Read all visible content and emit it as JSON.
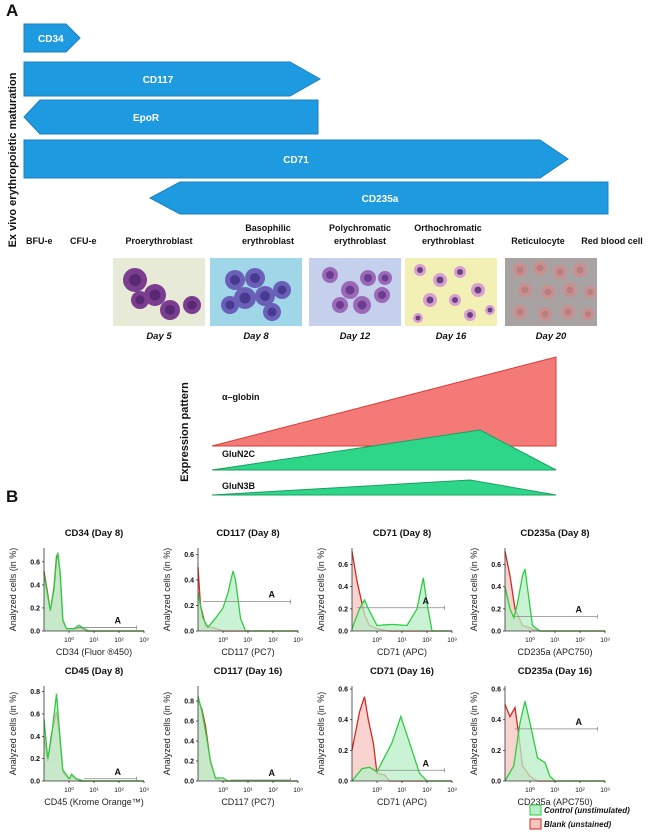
{
  "panel_a": {
    "letter": "A",
    "vertical_label": "Ex vivo erythropoietic maturation",
    "markers": [
      "CD34",
      "CD117",
      "EpoR",
      "CD71",
      "CD235a"
    ],
    "stages": {
      "bfu": "BFU-e",
      "cfu": "CFU-e",
      "pro": "Proerythroblast",
      "baso1": "Basophilic",
      "baso2": "erythroblast",
      "poly1": "Polychromatic",
      "poly2": "erythroblast",
      "ortho1": "Orthochromatic",
      "ortho2": "erythroblast",
      "retic": "Reticulocyte",
      "rbc": "Red blood cell"
    },
    "days": [
      "Day 5",
      "Day 8",
      "Day 12",
      "Day 16",
      "Day 20"
    ],
    "expression": {
      "label": "Expression pattern",
      "genes": [
        "α–globin",
        "GluN2C",
        "GluN3B"
      ]
    }
  },
  "panel_b": {
    "letter": "B",
    "legend": {
      "control": "Control (unstimulated)",
      "blank": "Blank (unstained)"
    }
  },
  "colors": {
    "arrow": "#1e9be0",
    "control": "#2ecc40",
    "control_fill": "#b8efc8",
    "blank": "#d42a20",
    "blank_fill": "#f6c4c0"
  },
  "chart_data": [
    {
      "type": "area",
      "title": "CD34 (Day 8)",
      "xlabel": "CD34 (Fluor ®450)",
      "ylabel": "Analyzed cells (in %)",
      "xlim_log10": [
        -1,
        3
      ],
      "xticks": [
        "10⁰",
        "10¹",
        "10²",
        "10³"
      ],
      "ylim": [
        0,
        0.72
      ],
      "yticks": [
        "0.0",
        "0.2",
        "0.4",
        "0.6"
      ],
      "gate": {
        "label": "A",
        "from_log10": 0.3,
        "to_log10": 2.7,
        "y": 0.03
      },
      "series": [
        {
          "name": "Control (unstimulated)",
          "points": [
            [
              -1,
              0.5
            ],
            [
              -0.85,
              0.3
            ],
            [
              -0.75,
              0.18
            ],
            [
              -0.6,
              0.36
            ],
            [
              -0.5,
              0.62
            ],
            [
              -0.45,
              0.68
            ],
            [
              -0.35,
              0.5
            ],
            [
              -0.25,
              0.1
            ],
            [
              -0.1,
              0.02
            ],
            [
              0.2,
              0.02
            ],
            [
              0.4,
              0.05
            ],
            [
              0.6,
              0.02
            ],
            [
              0.8,
              0
            ],
            [
              3,
              0
            ]
          ]
        },
        {
          "name": "Blank (unstained)",
          "points": [
            [
              -1,
              0.52
            ],
            [
              -0.85,
              0.32
            ],
            [
              -0.75,
              0.17
            ],
            [
              -0.6,
              0.38
            ],
            [
              -0.5,
              0.65
            ],
            [
              -0.45,
              0.66
            ],
            [
              -0.35,
              0.45
            ],
            [
              -0.25,
              0.08
            ],
            [
              -0.1,
              0.02
            ],
            [
              0.3,
              0.02
            ],
            [
              0.45,
              0.03
            ],
            [
              0.7,
              0
            ],
            [
              3,
              0
            ]
          ]
        }
      ]
    },
    {
      "type": "area",
      "title": "CD117 (Day 8)",
      "xlabel": "CD117 (PC7)",
      "ylabel": "Analyzed cells (in %)",
      "xlim_log10": [
        -1,
        3
      ],
      "xticks": [
        "10⁰",
        "10¹",
        "10²",
        "10³"
      ],
      "ylim": [
        0,
        0.65
      ],
      "yticks": [
        "0.0",
        "0.2",
        "0.4",
        "0.6"
      ],
      "gate": {
        "label": "A",
        "from_log10": -0.8,
        "to_log10": 2.7,
        "y": 0.23
      },
      "series": [
        {
          "name": "Control (unstimulated)",
          "points": [
            [
              -1,
              0.3
            ],
            [
              -0.8,
              0.1
            ],
            [
              -0.6,
              0.03
            ],
            [
              -0.3,
              0.1
            ],
            [
              0,
              0.18
            ],
            [
              0.2,
              0.3
            ],
            [
              0.4,
              0.47
            ],
            [
              0.5,
              0.4
            ],
            [
              0.7,
              0.1
            ],
            [
              0.9,
              0
            ],
            [
              3,
              0
            ]
          ]
        },
        {
          "name": "Blank (unstained)",
          "points": [
            [
              -1,
              0.5
            ],
            [
              -0.9,
              0.2
            ],
            [
              -0.7,
              0.04
            ],
            [
              -0.3,
              0.02
            ],
            [
              0,
              0
            ],
            [
              3,
              0
            ]
          ]
        }
      ]
    },
    {
      "type": "area",
      "title": "CD71 (Day 8)",
      "xlabel": "CD71 (APC)",
      "ylabel": "Analyzed cells (in %)",
      "xlim_log10": [
        -1,
        3
      ],
      "xticks": [
        "10⁰",
        "10¹",
        "10²",
        "10³"
      ],
      "ylim": [
        0,
        0.75
      ],
      "yticks": [
        "0.0",
        "0.2",
        "0.4",
        "0.6"
      ],
      "gate": {
        "label": "A",
        "from_log10": -0.8,
        "to_log10": 2.7,
        "y": 0.21
      },
      "series": [
        {
          "name": "Control (unstimulated)",
          "points": [
            [
              -1,
              0.02
            ],
            [
              -0.7,
              0.2
            ],
            [
              -0.5,
              0.28
            ],
            [
              -0.3,
              0.18
            ],
            [
              0,
              0.05
            ],
            [
              0.6,
              0.06
            ],
            [
              1.2,
              0.05
            ],
            [
              1.6,
              0.2
            ],
            [
              1.85,
              0.48
            ],
            [
              2,
              0.25
            ],
            [
              2.2,
              0
            ],
            [
              3,
              0
            ]
          ]
        },
        {
          "name": "Blank (unstained)",
          "points": [
            [
              -1,
              0.72
            ],
            [
              -0.8,
              0.45
            ],
            [
              -0.5,
              0.15
            ],
            [
              -0.3,
              0.05
            ],
            [
              0,
              0.02
            ],
            [
              0.5,
              0
            ],
            [
              3,
              0
            ]
          ]
        }
      ]
    },
    {
      "type": "area",
      "title": "CD235a (Day 8)",
      "xlabel": "CD235a (APC750)",
      "ylabel": "Analyzed cells (in %)",
      "xlim_log10": [
        -1,
        3
      ],
      "xticks": [
        "10⁰",
        "10¹",
        "10²",
        "10³"
      ],
      "ylim": [
        0,
        0.75
      ],
      "yticks": [
        "0.0",
        "0.2",
        "0.4",
        "0.6"
      ],
      "gate": {
        "label": "A",
        "from_log10": -0.6,
        "to_log10": 2.7,
        "y": 0.13
      },
      "series": [
        {
          "name": "Control (unstimulated)",
          "points": [
            [
              -1,
              0.4
            ],
            [
              -0.8,
              0.2
            ],
            [
              -0.65,
              0.12
            ],
            [
              -0.5,
              0.25
            ],
            [
              -0.3,
              0.5
            ],
            [
              -0.2,
              0.56
            ],
            [
              -0.05,
              0.3
            ],
            [
              0.1,
              0.05
            ],
            [
              0.4,
              0
            ],
            [
              3,
              0
            ]
          ]
        },
        {
          "name": "Blank (unstained)",
          "points": [
            [
              -1,
              0.72
            ],
            [
              -0.8,
              0.5
            ],
            [
              -0.6,
              0.2
            ],
            [
              -0.3,
              0.05
            ],
            [
              0.1,
              0.02
            ],
            [
              0.4,
              0
            ],
            [
              3,
              0
            ]
          ]
        }
      ]
    },
    {
      "type": "area",
      "title": "CD45 (Day 8)",
      "xlabel": "CD45 (Krome Orange™)",
      "ylabel": "Analyzed cells (in %)",
      "xlim_log10": [
        -1,
        3
      ],
      "xticks": [
        "10⁰",
        "10¹",
        "10²",
        "10³"
      ],
      "ylim": [
        0,
        0.85
      ],
      "yticks": [
        "0.0",
        "0.2",
        "0.4",
        "0.6",
        "0.8"
      ],
      "gate": {
        "label": "A",
        "from_log10": 0.6,
        "to_log10": 2.7,
        "y": 0.02
      },
      "series": [
        {
          "name": "Control (unstimulated)",
          "points": [
            [
              -1,
              0.55
            ],
            [
              -0.85,
              0.2
            ],
            [
              -0.7,
              0.4
            ],
            [
              -0.5,
              0.78
            ],
            [
              -0.4,
              0.5
            ],
            [
              -0.25,
              0.1
            ],
            [
              0,
              0.02
            ],
            [
              0.1,
              0.06
            ],
            [
              0.3,
              0.02
            ],
            [
              0.6,
              0
            ],
            [
              3,
              0
            ]
          ]
        },
        {
          "name": "Blank (unstained)",
          "points": [
            [
              -1,
              0.4
            ],
            [
              -0.85,
              0.18
            ],
            [
              -0.7,
              0.42
            ],
            [
              -0.5,
              0.62
            ],
            [
              -0.4,
              0.45
            ],
            [
              -0.25,
              0.08
            ],
            [
              0,
              0.02
            ],
            [
              0.15,
              0.04
            ],
            [
              0.4,
              0
            ],
            [
              3,
              0
            ]
          ]
        }
      ]
    },
    {
      "type": "area",
      "title": "CD117 (Day 16)",
      "xlabel": "CD117 (PC7)",
      "ylabel": "Analyzed cells (in %)",
      "xlim_log10": [
        -1,
        3
      ],
      "xticks": [
        "10⁰",
        "10¹",
        "10²",
        "10³"
      ],
      "ylim": [
        0,
        0.95
      ],
      "yticks": [
        "0.0",
        "0.2",
        "0.4",
        "0.6",
        "0.8"
      ],
      "gate": {
        "label": "A",
        "from_log10": 0.3,
        "to_log10": 2.7,
        "y": 0.01
      },
      "series": [
        {
          "name": "Control (unstimulated)",
          "points": [
            [
              -1,
              0.85
            ],
            [
              -0.85,
              0.7
            ],
            [
              -0.7,
              0.5
            ],
            [
              -0.5,
              0.2
            ],
            [
              -0.3,
              0.03
            ],
            [
              0,
              0.03
            ],
            [
              0.2,
              0
            ],
            [
              3,
              0
            ]
          ]
        },
        {
          "name": "Blank (unstained)",
          "points": [
            [
              -1,
              0.8
            ],
            [
              -0.85,
              0.72
            ],
            [
              -0.7,
              0.55
            ],
            [
              -0.5,
              0.18
            ],
            [
              -0.3,
              0.02
            ],
            [
              0,
              0
            ],
            [
              3,
              0
            ]
          ]
        }
      ]
    },
    {
      "type": "area",
      "title": "CD71 (Day 16)",
      "xlabel": "CD71 (APC)",
      "ylabel": "Analyzed cells (in %)",
      "xlim_log10": [
        -1,
        3
      ],
      "xticks": [
        "10⁰",
        "10¹",
        "10²",
        "10³"
      ],
      "ylim": [
        0,
        0.62
      ],
      "yticks": [
        "0.0",
        "0.2",
        "0.4",
        "0.6"
      ],
      "gate": {
        "label": "A",
        "from_log10": -0.1,
        "to_log10": 2.7,
        "y": 0.07
      },
      "series": [
        {
          "name": "Control (unstimulated)",
          "points": [
            [
              -1,
              0
            ],
            [
              -0.6,
              0.08
            ],
            [
              -0.3,
              0.09
            ],
            [
              0,
              0.06
            ],
            [
              0.6,
              0.25
            ],
            [
              0.95,
              0.42
            ],
            [
              1.3,
              0.25
            ],
            [
              1.7,
              0.05
            ],
            [
              2,
              0
            ],
            [
              3,
              0
            ]
          ]
        },
        {
          "name": "Blank (unstained)",
          "points": [
            [
              -1,
              0.2
            ],
            [
              -0.7,
              0.45
            ],
            [
              -0.5,
              0.55
            ],
            [
              -0.35,
              0.4
            ],
            [
              -0.15,
              0.25
            ],
            [
              0,
              0.05
            ],
            [
              0.3,
              0.04
            ],
            [
              0.5,
              0
            ],
            [
              3,
              0
            ]
          ]
        }
      ]
    },
    {
      "type": "area",
      "title": "CD235a (Day 16)",
      "xlabel": "CD235a (APC750)",
      "ylabel": "Analyzed cells (in %)",
      "xlim_log10": [
        -1,
        3
      ],
      "xticks": [
        "10⁰",
        "10¹",
        "10²",
        "10³"
      ],
      "ylim": [
        0,
        0.62
      ],
      "yticks": [
        "0.0",
        "0.2",
        "0.4",
        "0.6"
      ],
      "gate": {
        "label": "A",
        "from_log10": -0.6,
        "to_log10": 2.7,
        "y": 0.34
      },
      "series": [
        {
          "name": "Control (unstimulated)",
          "points": [
            [
              -1,
              0
            ],
            [
              -0.65,
              0.1
            ],
            [
              -0.4,
              0.38
            ],
            [
              -0.2,
              0.52
            ],
            [
              0,
              0.38
            ],
            [
              0.3,
              0.15
            ],
            [
              0.6,
              0.12
            ],
            [
              0.8,
              0.03
            ],
            [
              1,
              0
            ],
            [
              3,
              0
            ]
          ]
        },
        {
          "name": "Blank (unstained)",
          "points": [
            [
              -1,
              0.5
            ],
            [
              -0.8,
              0.42
            ],
            [
              -0.6,
              0.48
            ],
            [
              -0.45,
              0.3
            ],
            [
              -0.3,
              0.1
            ],
            [
              0,
              0.03
            ],
            [
              0.3,
              0
            ],
            [
              3,
              0
            ]
          ]
        }
      ]
    }
  ]
}
